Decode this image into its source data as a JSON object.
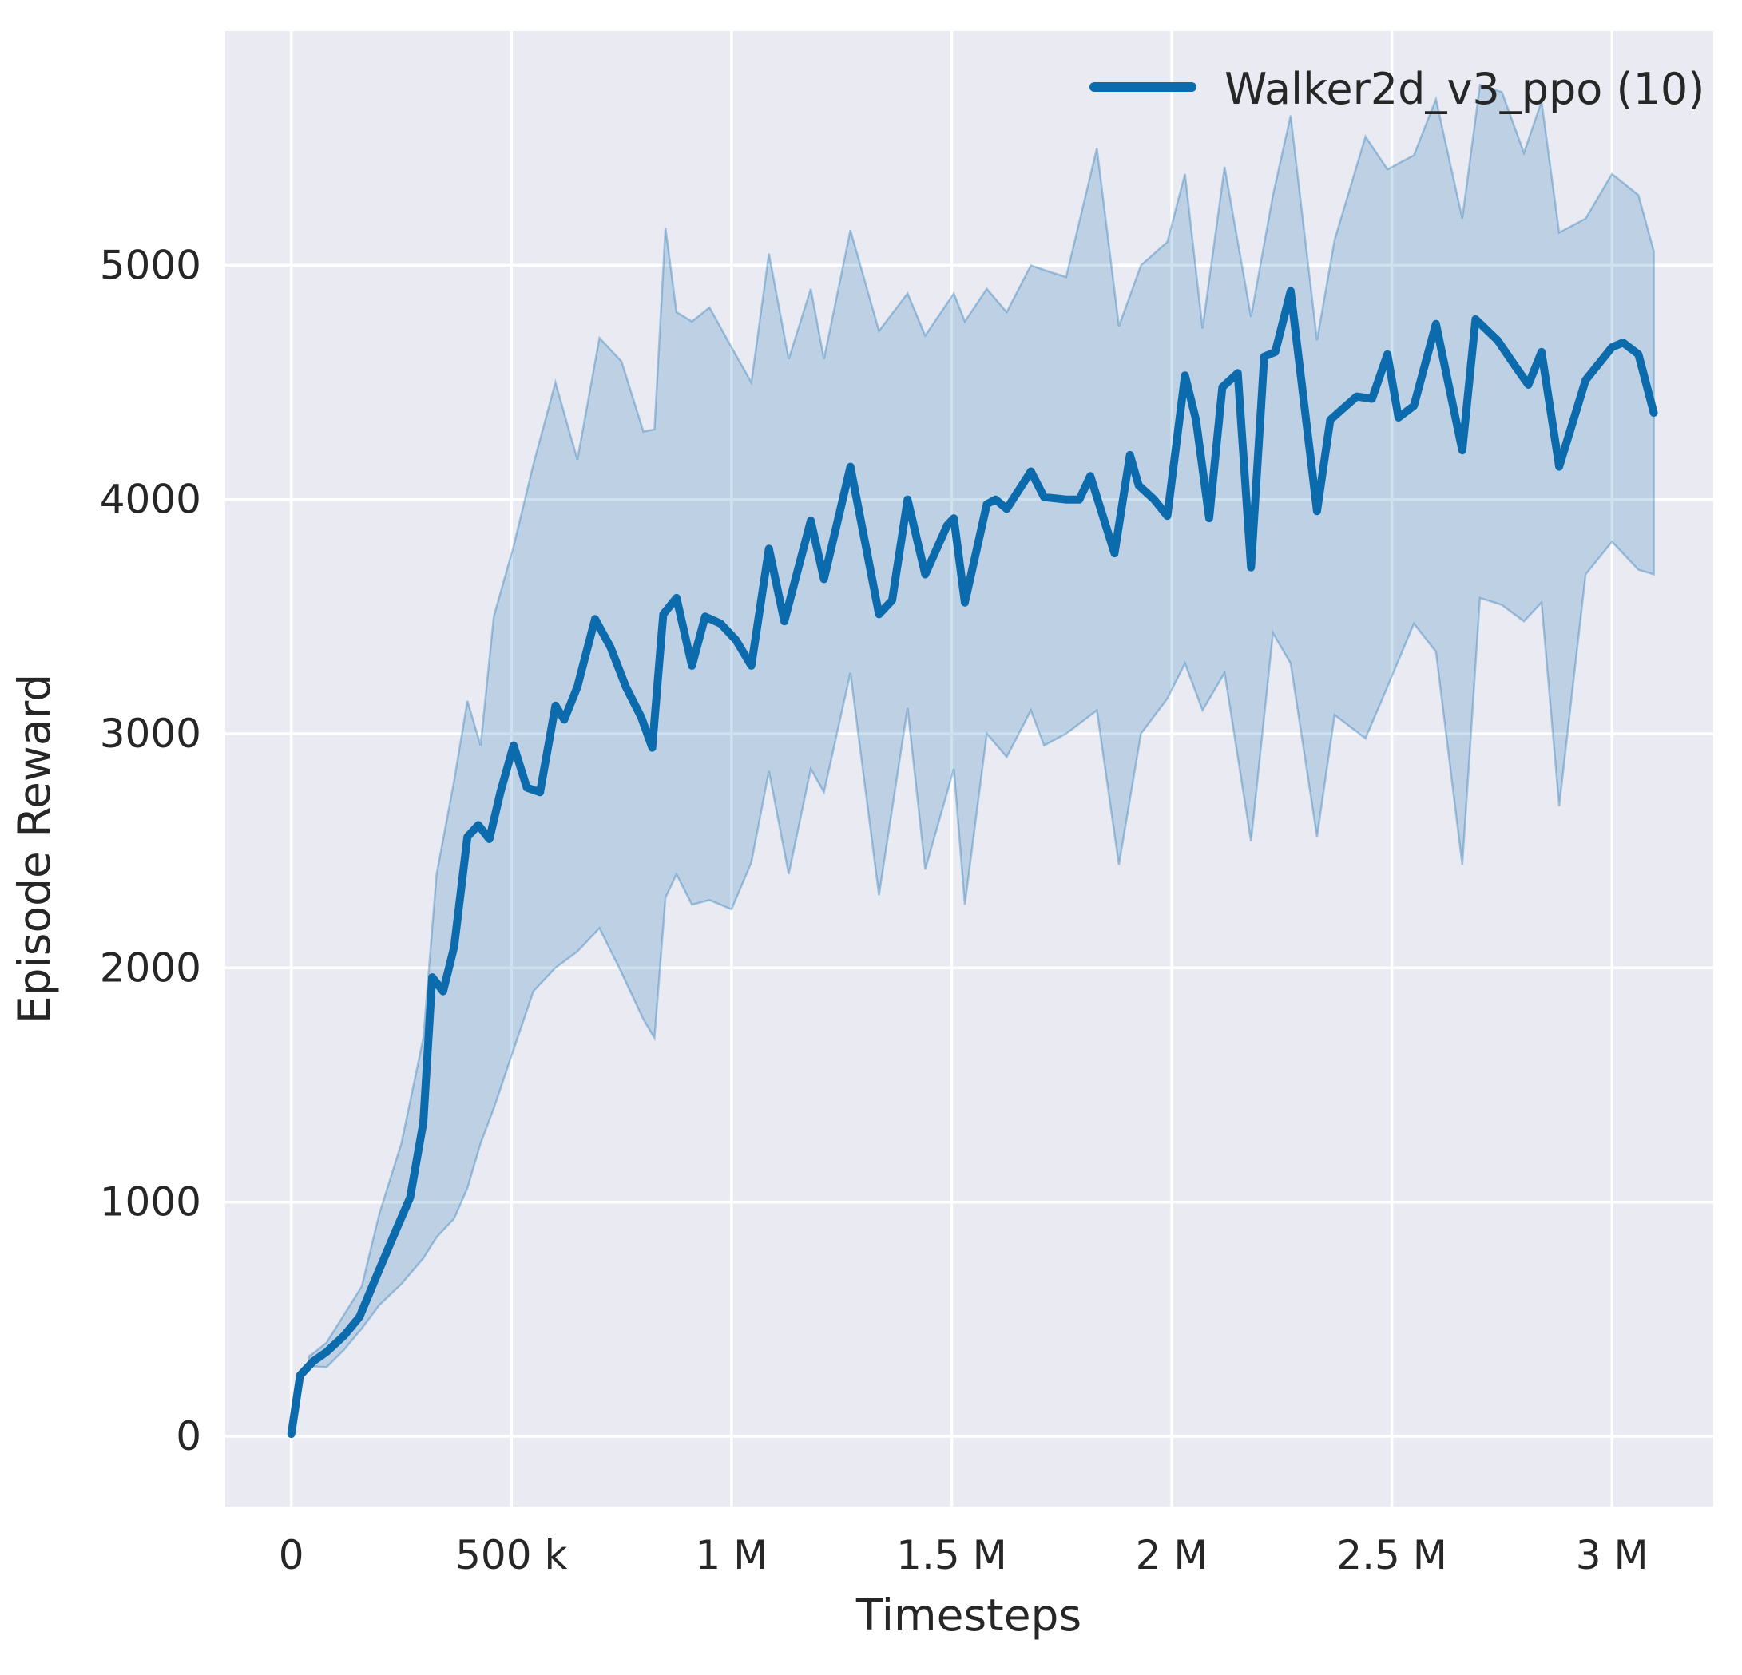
{
  "figure": {
    "background_color": "#ffffff",
    "axes_background_color": "#eaeaf2",
    "grid_color": "#ffffff",
    "text_color": "#262626",
    "line_color": "#0c6bad",
    "band_fill_color": "rgba(12,107,173,0.20)",
    "band_edge_color": "rgba(12,107,173,0.32)"
  },
  "legend": {
    "label": "Walker2d_v3_ppo (10)",
    "position": "upper right"
  },
  "chart_data": {
    "type": "line",
    "title": "",
    "xlabel": "Timesteps",
    "ylabel": "Episode Reward",
    "xlim": [
      -150000,
      3230000
    ],
    "ylim": [
      -300,
      6000
    ],
    "grid": true,
    "legend_position": "upper right",
    "x_ticks": [
      {
        "value": 0,
        "label": "0"
      },
      {
        "value": 500000,
        "label": "500 k"
      },
      {
        "value": 1000000,
        "label": "1 M"
      },
      {
        "value": 1500000,
        "label": "1.5 M"
      },
      {
        "value": 2000000,
        "label": "2 M"
      },
      {
        "value": 2500000,
        "label": "2.5 M"
      },
      {
        "value": 3000000,
        "label": "3 M"
      }
    ],
    "y_ticks": [
      {
        "value": 0,
        "label": "0"
      },
      {
        "value": 1000,
        "label": "1000"
      },
      {
        "value": 2000,
        "label": "2000"
      },
      {
        "value": 3000,
        "label": "3000"
      },
      {
        "value": 4000,
        "label": "4000"
      },
      {
        "value": 5000,
        "label": "5000"
      }
    ],
    "series": [
      {
        "name": "Walker2d_v3_ppo (10)",
        "color": "#0c6bad",
        "line_width": 10,
        "points": [
          [
            0,
            10
          ],
          [
            20000,
            260
          ],
          [
            50000,
            320
          ],
          [
            80000,
            360
          ],
          [
            120000,
            430
          ],
          [
            155000,
            510
          ],
          [
            195000,
            690
          ],
          [
            240000,
            890
          ],
          [
            270000,
            1020
          ],
          [
            300000,
            1340
          ],
          [
            320000,
            1960
          ],
          [
            345000,
            1900
          ],
          [
            370000,
            2090
          ],
          [
            400000,
            2560
          ],
          [
            425000,
            2610
          ],
          [
            450000,
            2550
          ],
          [
            475000,
            2750
          ],
          [
            505000,
            2950
          ],
          [
            535000,
            2770
          ],
          [
            565000,
            2750
          ],
          [
            600000,
            3120
          ],
          [
            620000,
            3060
          ],
          [
            650000,
            3200
          ],
          [
            690000,
            3490
          ],
          [
            725000,
            3370
          ],
          [
            760000,
            3200
          ],
          [
            795000,
            3070
          ],
          [
            820000,
            2940
          ],
          [
            845000,
            3510
          ],
          [
            875000,
            3580
          ],
          [
            910000,
            3290
          ],
          [
            940000,
            3500
          ],
          [
            975000,
            3470
          ],
          [
            1010000,
            3400
          ],
          [
            1045000,
            3290
          ],
          [
            1085000,
            3790
          ],
          [
            1120000,
            3480
          ],
          [
            1180000,
            3910
          ],
          [
            1210000,
            3660
          ],
          [
            1270000,
            4140
          ],
          [
            1335000,
            3510
          ],
          [
            1365000,
            3570
          ],
          [
            1400000,
            4000
          ],
          [
            1440000,
            3680
          ],
          [
            1490000,
            3890
          ],
          [
            1505000,
            3920
          ],
          [
            1530000,
            3560
          ],
          [
            1580000,
            3980
          ],
          [
            1600000,
            4000
          ],
          [
            1625000,
            3960
          ],
          [
            1680000,
            4120
          ],
          [
            1710000,
            4010
          ],
          [
            1760000,
            4000
          ],
          [
            1790000,
            4000
          ],
          [
            1815000,
            4100
          ],
          [
            1870000,
            3770
          ],
          [
            1905000,
            4190
          ],
          [
            1925000,
            4060
          ],
          [
            1960000,
            4000
          ],
          [
            1990000,
            3930
          ],
          [
            2030000,
            4530
          ],
          [
            2055000,
            4340
          ],
          [
            2085000,
            3920
          ],
          [
            2115000,
            4480
          ],
          [
            2150000,
            4540
          ],
          [
            2180000,
            3710
          ],
          [
            2210000,
            4610
          ],
          [
            2235000,
            4630
          ],
          [
            2270000,
            4890
          ],
          [
            2330000,
            3950
          ],
          [
            2360000,
            4340
          ],
          [
            2420000,
            4440
          ],
          [
            2455000,
            4430
          ],
          [
            2490000,
            4620
          ],
          [
            2515000,
            4350
          ],
          [
            2550000,
            4400
          ],
          [
            2600000,
            4750
          ],
          [
            2660000,
            4210
          ],
          [
            2690000,
            4770
          ],
          [
            2740000,
            4680
          ],
          [
            2780000,
            4570
          ],
          [
            2810000,
            4490
          ],
          [
            2840000,
            4630
          ],
          [
            2880000,
            4140
          ],
          [
            2940000,
            4510
          ],
          [
            3000000,
            4650
          ],
          [
            3025000,
            4670
          ],
          [
            3060000,
            4620
          ],
          [
            3095000,
            4370
          ]
        ]
      }
    ],
    "band": {
      "name": "confidence-range",
      "points": [
        [
          40000,
          300,
          340
        ],
        [
          80000,
          295,
          400
        ],
        [
          120000,
          370,
          520
        ],
        [
          160000,
          460,
          640
        ],
        [
          200000,
          560,
          950
        ],
        [
          250000,
          650,
          1250
        ],
        [
          300000,
          760,
          1700
        ],
        [
          330000,
          850,
          2400
        ],
        [
          370000,
          930,
          2800
        ],
        [
          400000,
          1060,
          3140
        ],
        [
          430000,
          1250,
          2950
        ],
        [
          460000,
          1400,
          3500
        ],
        [
          505000,
          1650,
          3800
        ],
        [
          550000,
          1900,
          4150
        ],
        [
          600000,
          2000,
          4500
        ],
        [
          650000,
          2070,
          4170
        ],
        [
          700000,
          2170,
          4690
        ],
        [
          750000,
          1980,
          4590
        ],
        [
          800000,
          1780,
          4290
        ],
        [
          825000,
          1700,
          4300
        ],
        [
          850000,
          2300,
          5160
        ],
        [
          875000,
          2400,
          4800
        ],
        [
          910000,
          2270,
          4760
        ],
        [
          950000,
          2290,
          4820
        ],
        [
          1000000,
          2250,
          4650
        ],
        [
          1045000,
          2450,
          4500
        ],
        [
          1085000,
          2840,
          5050
        ],
        [
          1130000,
          2400,
          4600
        ],
        [
          1180000,
          2850,
          4900
        ],
        [
          1210000,
          2750,
          4600
        ],
        [
          1270000,
          3260,
          5150
        ],
        [
          1335000,
          2310,
          4720
        ],
        [
          1400000,
          3110,
          4880
        ],
        [
          1440000,
          2420,
          4700
        ],
        [
          1505000,
          2850,
          4880
        ],
        [
          1530000,
          2270,
          4760
        ],
        [
          1580000,
          3000,
          4900
        ],
        [
          1625000,
          2900,
          4800
        ],
        [
          1680000,
          3100,
          5000
        ],
        [
          1710000,
          2950,
          4980
        ],
        [
          1760000,
          3000,
          4950
        ],
        [
          1830000,
          3100,
          5500
        ],
        [
          1880000,
          2440,
          4740
        ],
        [
          1930000,
          3000,
          5000
        ],
        [
          1990000,
          3150,
          5100
        ],
        [
          2030000,
          3300,
          5390
        ],
        [
          2070000,
          3100,
          4730
        ],
        [
          2120000,
          3260,
          5420
        ],
        [
          2180000,
          2540,
          4780
        ],
        [
          2230000,
          3430,
          5300
        ],
        [
          2270000,
          3300,
          5640
        ],
        [
          2330000,
          2560,
          4680
        ],
        [
          2370000,
          3080,
          5110
        ],
        [
          2440000,
          2980,
          5550
        ],
        [
          2490000,
          3200,
          5410
        ],
        [
          2550000,
          3470,
          5470
        ],
        [
          2600000,
          3350,
          5710
        ],
        [
          2660000,
          2440,
          5200
        ],
        [
          2700000,
          3580,
          5770
        ],
        [
          2750000,
          3550,
          5740
        ],
        [
          2800000,
          3480,
          5480
        ],
        [
          2840000,
          3560,
          5700
        ],
        [
          2880000,
          2690,
          5140
        ],
        [
          2940000,
          3680,
          5200
        ],
        [
          3000000,
          3820,
          5390
        ],
        [
          3060000,
          3700,
          5300
        ],
        [
          3095000,
          3680,
          5060
        ]
      ]
    }
  }
}
